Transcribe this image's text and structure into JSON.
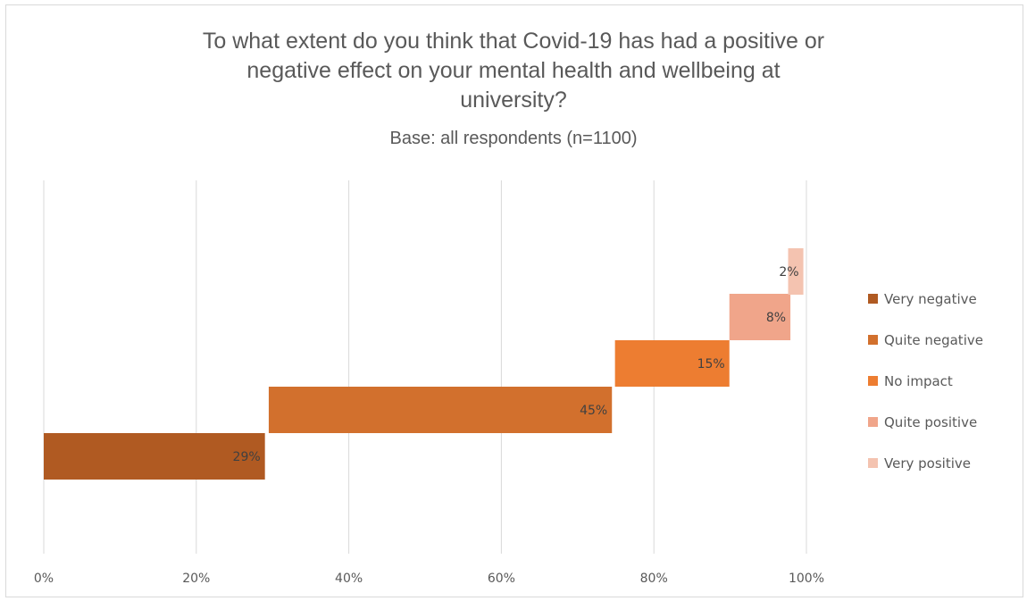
{
  "chart_data": {
    "type": "bar",
    "subtype": "waterfall-stacked-horizontal",
    "title": "To what extent do you think that Covid-19 has had a positive or\nnegative effect on your mental health and wellbeing at\nuniversity?",
    "subtitle": "Base: all respondents (n=1100)",
    "xlim": [
      0,
      100
    ],
    "x_ticks": [
      "0%",
      "20%",
      "40%",
      "60%",
      "80%",
      "100%"
    ],
    "x_tick_values": [
      0,
      20,
      40,
      60,
      80,
      100
    ],
    "grid": true,
    "legend_position": "right",
    "series": [
      {
        "name": "Very negative",
        "value": 29,
        "label": "29%",
        "start": 0,
        "color": "#b05a22"
      },
      {
        "name": "Quite negative",
        "value": 45,
        "label": "45%",
        "start": 29.5,
        "color": "#d2702d"
      },
      {
        "name": "No impact",
        "value": 15,
        "label": "15%",
        "start": 74.9,
        "color": "#ed7d31"
      },
      {
        "name": "Quite positive",
        "value": 8,
        "label": "8%",
        "start": 89.9,
        "color": "#f0a58a"
      },
      {
        "name": "Very positive",
        "value": 2,
        "label": "2%",
        "start": 97.6,
        "color": "#f4c3b0"
      }
    ]
  }
}
